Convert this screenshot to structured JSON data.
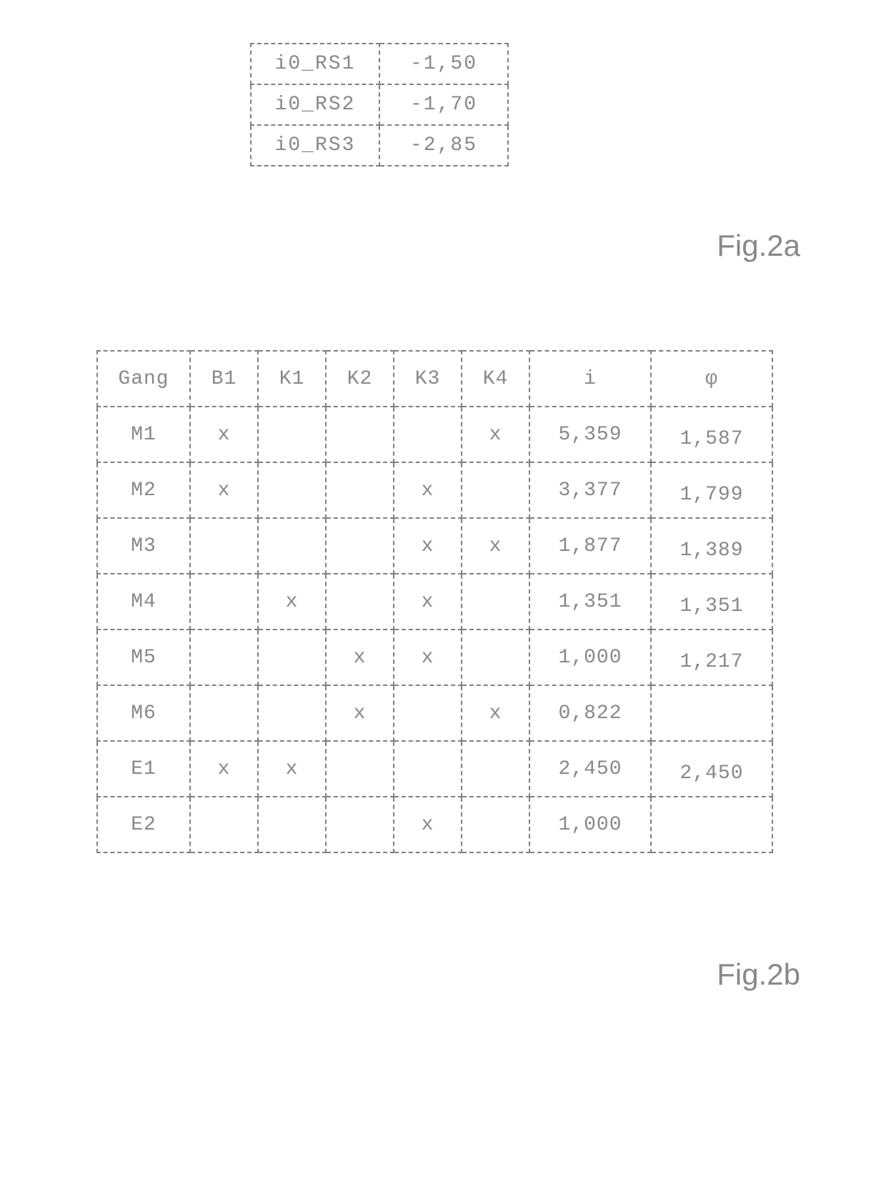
{
  "table1": {
    "type": "table",
    "text_color": "#888888",
    "border_color": "#808080",
    "border_style": "dashed",
    "font_family": "Courier New",
    "font_size": 28,
    "rows": [
      {
        "label": "i0_RS1",
        "value": "-1,50"
      },
      {
        "label": "i0_RS2",
        "value": "-1,70"
      },
      {
        "label": "i0_RS3",
        "value": "-2,85"
      }
    ]
  },
  "fig_label_2a": "Fig.2a",
  "table2": {
    "type": "table",
    "text_color": "#888888",
    "border_color": "#808080",
    "border_style": "dashed",
    "font_family": "Courier New",
    "font_size": 28,
    "header_fontsize": 28,
    "columns": [
      "Gang",
      "B1",
      "K1",
      "K2",
      "K3",
      "K4",
      "i",
      "φ"
    ],
    "mark": "x",
    "rows": [
      {
        "gang": "M1",
        "b1": "x",
        "k1": "",
        "k2": "",
        "k3": "",
        "k4": "x",
        "i": "5,359",
        "phi": "1,587"
      },
      {
        "gang": "M2",
        "b1": "x",
        "k1": "",
        "k2": "",
        "k3": "x",
        "k4": "",
        "i": "3,377",
        "phi": "1,799"
      },
      {
        "gang": "M3",
        "b1": "",
        "k1": "",
        "k2": "",
        "k3": "x",
        "k4": "x",
        "i": "1,877",
        "phi": "1,389"
      },
      {
        "gang": "M4",
        "b1": "",
        "k1": "x",
        "k2": "",
        "k3": "x",
        "k4": "",
        "i": "1,351",
        "phi": "1,351"
      },
      {
        "gang": "M5",
        "b1": "",
        "k1": "",
        "k2": "x",
        "k3": "x",
        "k4": "",
        "i": "1,000",
        "phi": "1,217"
      },
      {
        "gang": "M6",
        "b1": "",
        "k1": "",
        "k2": "x",
        "k3": "",
        "k4": "x",
        "i": "0,822",
        "phi": ""
      },
      {
        "gang": "E1",
        "b1": "x",
        "k1": "x",
        "k2": "",
        "k3": "",
        "k4": "",
        "i": "2,450",
        "phi": "2,450"
      },
      {
        "gang": "E2",
        "b1": "",
        "k1": "",
        "k2": "",
        "k3": "x",
        "k4": "",
        "i": "1,000",
        "phi": ""
      }
    ]
  },
  "fig_label_2b": "Fig.2b"
}
